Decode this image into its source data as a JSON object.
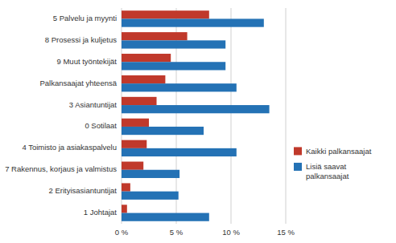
{
  "chart_data": {
    "type": "bar",
    "orientation": "horizontal",
    "categories": [
      "1 Johtajat",
      "2 Erityisasiantuntijat",
      "7 Rakennus, korjaus ja valmistus",
      "4 Toimisto ja asiakaspalvelu",
      "0 Sotilaat",
      "3 Asiantuntijat",
      "Palkansaajat yhteensä",
      "9 Muut työntekijät",
      "8 Prosessi ja kuljetus",
      "5 Palvelu ja myynti"
    ],
    "series": [
      {
        "name": "Kaikki palkansaajat",
        "color": "#c0392b",
        "values": [
          0.5,
          0.8,
          2.0,
          2.3,
          2.5,
          3.2,
          4.0,
          4.5,
          6.0,
          8.0
        ]
      },
      {
        "name": "Lisiä saavat\npalkansaajat",
        "color": "#2472b5",
        "values": [
          8.0,
          5.2,
          5.3,
          10.5,
          7.5,
          13.5,
          10.5,
          9.5,
          9.5,
          13.0
        ]
      }
    ],
    "xlim": [
      0,
      15
    ],
    "xticks": [
      {
        "value": 0,
        "label": "0 %"
      },
      {
        "value": 5,
        "label": "5 %"
      },
      {
        "value": 10,
        "label": "10 %"
      },
      {
        "value": 15,
        "label": "15 %"
      }
    ],
    "grid": true,
    "legend": "right"
  }
}
